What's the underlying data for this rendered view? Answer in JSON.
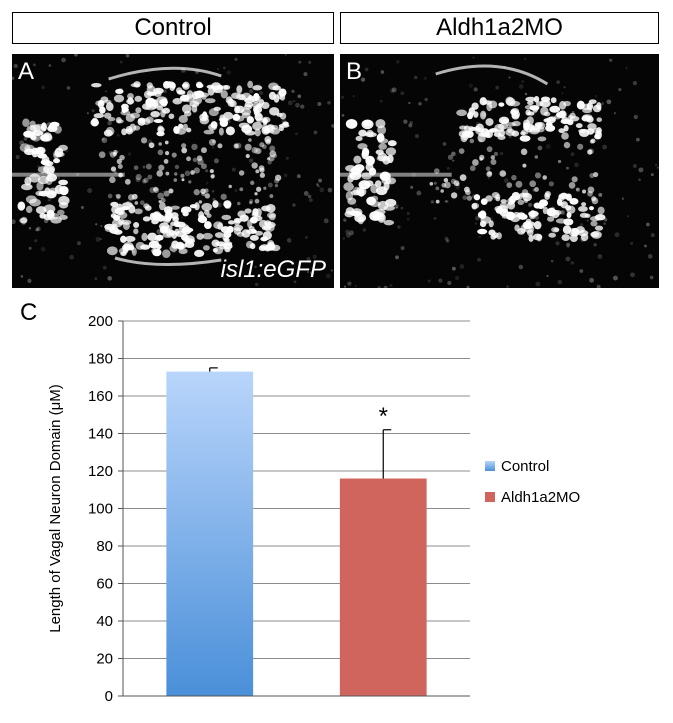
{
  "panels": {
    "a": {
      "header": "Control",
      "letter": "A",
      "caption": "isl1:eGFP"
    },
    "b": {
      "header": "Aldh1a2MO",
      "letter": "B"
    }
  },
  "figure_c_letter": "C",
  "chart_data": {
    "type": "bar",
    "categories": [
      "Control",
      "Aldh1a2MO"
    ],
    "values": [
      173,
      116
    ],
    "error": [
      2,
      26
    ],
    "annotations": [
      "",
      "*"
    ],
    "colors": [
      "#7fb0ef",
      "#d0655e"
    ],
    "title": "",
    "xlabel": "",
    "ylabel": "Length of Vagal Neuron Domain (μM)",
    "ylim": [
      0,
      200
    ],
    "yticks": [
      0,
      20,
      40,
      60,
      80,
      100,
      120,
      140,
      160,
      180,
      200
    ],
    "grid": true,
    "legend": {
      "position": "right",
      "entries": [
        {
          "label": "Control",
          "color": "#7fb0ef"
        },
        {
          "label": "Aldh1a2MO",
          "color": "#d0655e"
        }
      ]
    }
  }
}
